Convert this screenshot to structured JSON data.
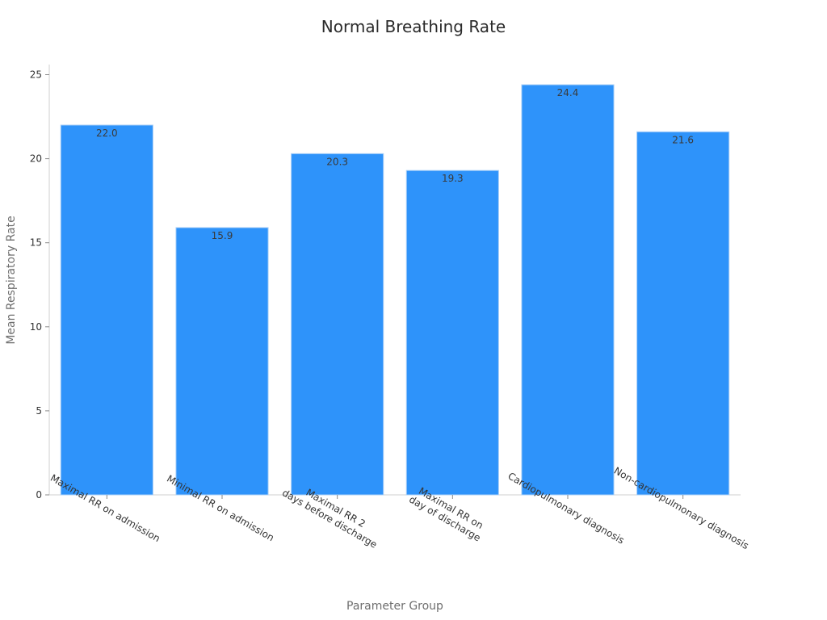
{
  "colors": {
    "bar": "#2e93fa",
    "bar_edge": "#a9cff7"
  },
  "chart_data": {
    "type": "bar",
    "title": "Normal Breathing Rate",
    "xlabel": "Parameter Group",
    "ylabel": "Mean Respiratory Rate",
    "categories": [
      [
        "Maximal RR on admission"
      ],
      [
        "Minimal RR on admission"
      ],
      [
        "Maximal RR 2",
        "days before discharge"
      ],
      [
        "Maximal RR on",
        "day of discharge"
      ],
      [
        "Cardiopulmonary diagnosis"
      ],
      [
        "Non-cardiopulmonary diagnosis"
      ]
    ],
    "values": [
      22.0,
      15.9,
      20.3,
      19.3,
      24.4,
      21.6
    ],
    "data_labels": [
      "22.0",
      "15.9",
      "20.3",
      "19.3",
      "24.4",
      "21.6"
    ],
    "yticks": [
      "0",
      "5",
      "10",
      "15",
      "20",
      "25"
    ],
    "ylim": [
      0,
      25.6
    ],
    "grid": false,
    "legend": "none"
  }
}
